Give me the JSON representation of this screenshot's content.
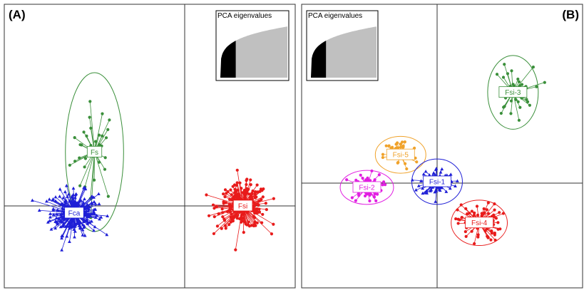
{
  "chart_data": [
    {
      "type": "scatter",
      "panel_label": "(A)",
      "xlim": [
        -10,
        10
      ],
      "ylim": [
        -10,
        10
      ],
      "axis_origin_visible": true,
      "inset": {
        "title": "PCA eigenvalues",
        "placement": "top-right"
      },
      "groups": [
        {
          "label": "Fs",
          "color": "#3a8f3a",
          "marker": "circle",
          "centroid": [
            -6.2,
            3.8
          ],
          "spread": [
            1.5,
            3.2
          ],
          "n": 35,
          "ellipse": [
            2.0,
            5.6
          ]
        },
        {
          "label": "Fca",
          "color": "#1f1fd6",
          "marker": "triangle",
          "centroid": [
            -7.6,
            -0.5
          ],
          "spread": [
            1.5,
            1.4
          ],
          "n": 260,
          "ellipse": null
        },
        {
          "label": "Fsi",
          "color": "#e81b1b",
          "marker": "circle",
          "centroid": [
            4.0,
            0.0
          ],
          "spread": [
            1.6,
            1.4
          ],
          "n": 240,
          "ellipse": null
        }
      ]
    },
    {
      "type": "scatter",
      "panel_label": "(B)",
      "xlim": [
        -10,
        10
      ],
      "ylim": [
        -10,
        10
      ],
      "axis_origin_visible": true,
      "inset": {
        "title": "PCA eigenvalues",
        "placement": "top-left"
      },
      "groups": [
        {
          "label": "Fsi-3",
          "color": "#3a8f3a",
          "marker": "circle",
          "centroid": [
            5.4,
            6.4
          ],
          "spread": [
            1.3,
            1.6
          ],
          "n": 40,
          "ellipse": [
            1.8,
            2.6
          ]
        },
        {
          "label": "Fsi-5",
          "color": "#f0a22a",
          "marker": "circle",
          "centroid": [
            -2.6,
            2.0
          ],
          "spread": [
            1.1,
            1.0
          ],
          "n": 45,
          "ellipse": [
            1.8,
            1.3
          ]
        },
        {
          "label": "Fsi-1",
          "color": "#1f1fd6",
          "marker": "triangle",
          "centroid": [
            0.0,
            0.1
          ],
          "spread": [
            1.1,
            0.9
          ],
          "n": 90,
          "ellipse": [
            1.8,
            1.6
          ]
        },
        {
          "label": "Fsi-2",
          "color": "#e11ee1",
          "marker": "circle",
          "centroid": [
            -5.0,
            -0.3
          ],
          "spread": [
            1.0,
            0.9
          ],
          "n": 60,
          "ellipse": [
            1.9,
            1.2
          ]
        },
        {
          "label": "Fsi-4",
          "color": "#e81b1b",
          "marker": "circle",
          "centroid": [
            3.0,
            -2.8
          ],
          "spread": [
            1.4,
            1.2
          ],
          "n": 90,
          "ellipse": [
            2.0,
            1.6
          ]
        }
      ]
    }
  ]
}
